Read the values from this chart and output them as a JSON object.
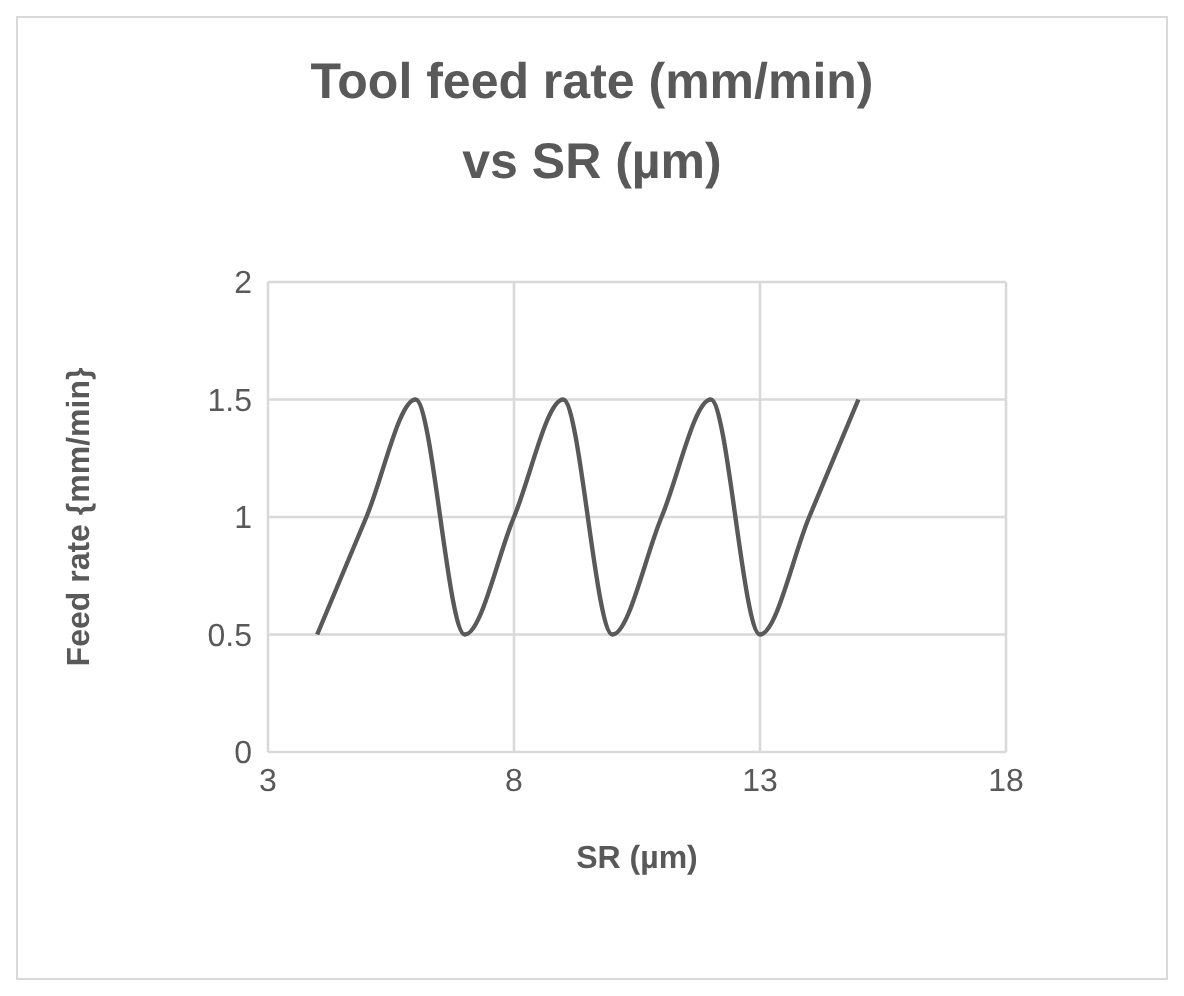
{
  "chart_data": {
    "type": "line",
    "title": "Tool feed rate (mm/min)   vs SR (µm)",
    "xlabel": "SR (µm)",
    "ylabel": "Feed rate {mm/min}",
    "x": [
      4,
      5,
      6,
      7,
      8,
      9,
      10,
      11,
      12,
      13,
      14,
      15
    ],
    "series": [
      {
        "color": "#595959",
        "values": [
          0.5,
          1,
          1.5,
          0.5,
          1,
          1.5,
          0.5,
          1,
          1.5,
          0.5,
          1,
          1.5
        ]
      }
    ],
    "xlim": [
      3,
      18
    ],
    "xticks": [
      3,
      8,
      13,
      18
    ],
    "ylim": [
      0,
      2
    ],
    "yticks": [
      0,
      0.5,
      1,
      1.5,
      2
    ],
    "grid": true,
    "legend": false,
    "marker": "none",
    "line_style": "solid"
  }
}
